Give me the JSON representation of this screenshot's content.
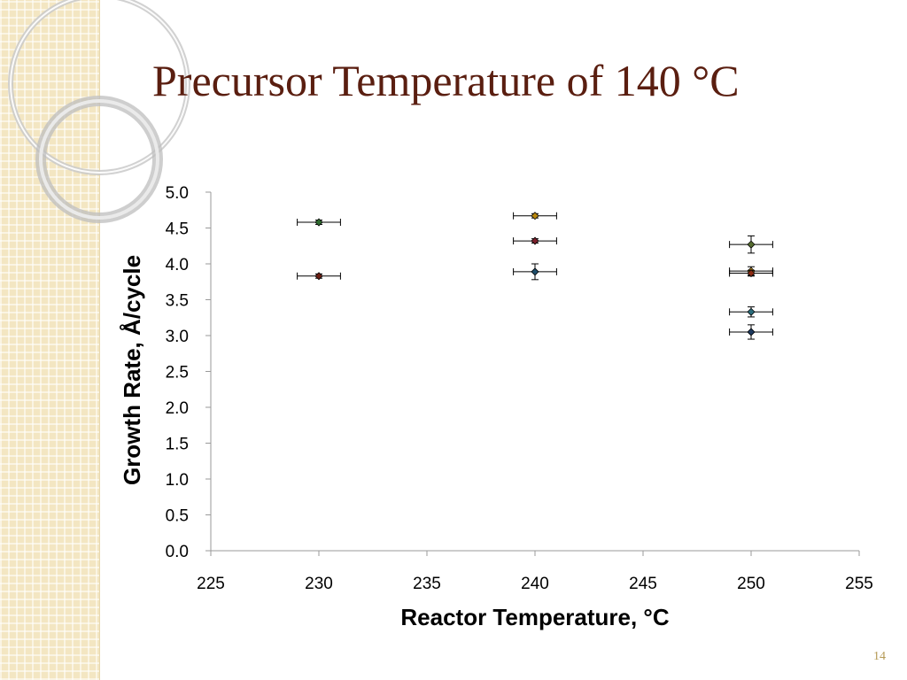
{
  "slide": {
    "title": "Precursor Temperature of 140 °C",
    "number": "14"
  },
  "chart_data": {
    "type": "scatter",
    "title": "",
    "xlabel": "Reactor Temperature, °C",
    "ylabel": "Growth Rate, Å/cycle",
    "xlim": [
      225,
      255
    ],
    "ylim": [
      0,
      5
    ],
    "xticks": [
      "225",
      "230",
      "235",
      "240",
      "245",
      "250",
      "255"
    ],
    "yticks": [
      "0.0",
      "0.5",
      "1.0",
      "1.5",
      "2.0",
      "2.5",
      "3.0",
      "3.5",
      "4.0",
      "4.5",
      "5.0"
    ],
    "grid": false,
    "legend": "none",
    "series": [
      {
        "color": "#2e6b2e",
        "points": [
          {
            "x": 230,
            "y": 4.58,
            "xerr": 1,
            "yerr": 0.03
          }
        ]
      },
      {
        "color": "#6b1e12",
        "points": [
          {
            "x": 230,
            "y": 3.83,
            "xerr": 1,
            "yerr": 0.03
          }
        ]
      },
      {
        "color": "#b8860b",
        "points": [
          {
            "x": 240,
            "y": 4.67,
            "xerr": 1,
            "yerr": 0.03
          }
        ]
      },
      {
        "color": "#7a1f2b",
        "points": [
          {
            "x": 240,
            "y": 4.32,
            "xerr": 1,
            "yerr": 0.03
          }
        ]
      },
      {
        "color": "#1f4e6b",
        "points": [
          {
            "x": 240,
            "y": 3.89,
            "xerr": 1,
            "yerr": 0.11
          }
        ]
      },
      {
        "color": "#556b2f",
        "points": [
          {
            "x": 250,
            "y": 4.27,
            "xerr": 1,
            "yerr": 0.12
          }
        ]
      },
      {
        "color": "#c8901a",
        "points": [
          {
            "x": 250,
            "y": 3.9,
            "xerr": 1,
            "yerr": 0.06
          }
        ]
      },
      {
        "color": "#8b2a12",
        "points": [
          {
            "x": 250,
            "y": 3.87,
            "xerr": 1,
            "yerr": 0.04
          }
        ]
      },
      {
        "color": "#2a6b7a",
        "points": [
          {
            "x": 250,
            "y": 3.33,
            "xerr": 1,
            "yerr": 0.07
          }
        ]
      },
      {
        "color": "#1e3a5f",
        "points": [
          {
            "x": 250,
            "y": 3.05,
            "xerr": 1,
            "yerr": 0.1
          }
        ]
      }
    ]
  }
}
